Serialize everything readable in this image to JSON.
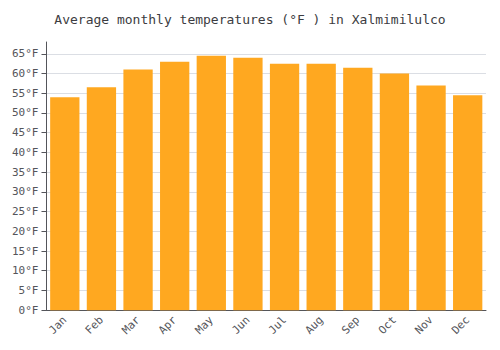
{
  "chart_data": {
    "type": "bar",
    "title": "Average monthly temperatures (°F ) in Xalmimilulco",
    "categories": [
      "Jan",
      "Feb",
      "Mar",
      "Apr",
      "May",
      "Jun",
      "Jul",
      "Aug",
      "Sep",
      "Oct",
      "Nov",
      "Dec"
    ],
    "values": [
      54,
      56.5,
      61,
      63,
      64.5,
      64,
      62.5,
      62.5,
      61.5,
      60,
      57,
      54.5
    ],
    "color": "#FFA820",
    "ylim": [
      0,
      68
    ],
    "yticks": [
      {
        "value": 0,
        "label": "0°F"
      },
      {
        "value": 5,
        "label": "5°F"
      },
      {
        "value": 10,
        "label": "10°F"
      },
      {
        "value": 15,
        "label": "15°F"
      },
      {
        "value": 20,
        "label": "20°F"
      },
      {
        "value": 25,
        "label": "25°F"
      },
      {
        "value": 30,
        "label": "30°F"
      },
      {
        "value": 35,
        "label": "35°F"
      },
      {
        "value": 40,
        "label": "40°F"
      },
      {
        "value": 45,
        "label": "45°F"
      },
      {
        "value": 50,
        "label": "50°F"
      },
      {
        "value": 55,
        "label": "55°F"
      },
      {
        "value": 60,
        "label": "60°F"
      },
      {
        "value": 65,
        "label": "65°F"
      }
    ],
    "grid": true
  }
}
